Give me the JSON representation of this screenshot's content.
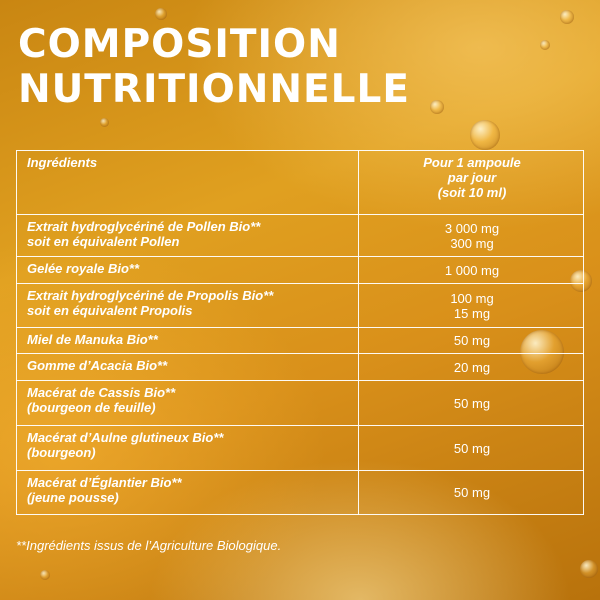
{
  "title_lines": [
    "COMPOSITION",
    "NUTRITIONNELLE"
  ],
  "table": {
    "header_ingredient": "Ingrédients",
    "header_dose_lines": [
      "Pour 1 ampoule",
      "par jour",
      "(soit 10 ml)"
    ],
    "rows": [
      {
        "name": [
          "Extrait hydroglycériné de Pollen Bio**",
          "soit en équivalent Pollen"
        ],
        "dose": [
          "3 000 mg",
          "300 mg"
        ]
      },
      {
        "name": [
          "Gelée royale Bio**"
        ],
        "dose": [
          "1 000 mg"
        ]
      },
      {
        "name": [
          "Extrait hydroglycériné de Propolis Bio**",
          "soit en équivalent Propolis"
        ],
        "dose": [
          "100 mg",
          "15 mg"
        ]
      },
      {
        "name": [
          "Miel de Manuka Bio**"
        ],
        "dose": [
          "50 mg"
        ]
      },
      {
        "name": [
          "Gomme d’Acacia Bio**"
        ],
        "dose": [
          "20 mg"
        ]
      },
      {
        "name": [
          "Macérat de Cassis Bio**",
          "(bourgeon de feuille)"
        ],
        "dose": [
          "50 mg"
        ]
      },
      {
        "name": [
          "Macérat d’Aulne glutineux Bio**",
          "(bourgeon)"
        ],
        "dose": [
          "50 mg"
        ]
      },
      {
        "name": [
          "Macérat d’Églantier Bio**",
          "(jeune pousse)"
        ],
        "dose": [
          "50 mg"
        ]
      }
    ]
  },
  "footnote": "**Ingrédients issus de l’Agriculture Biologique."
}
